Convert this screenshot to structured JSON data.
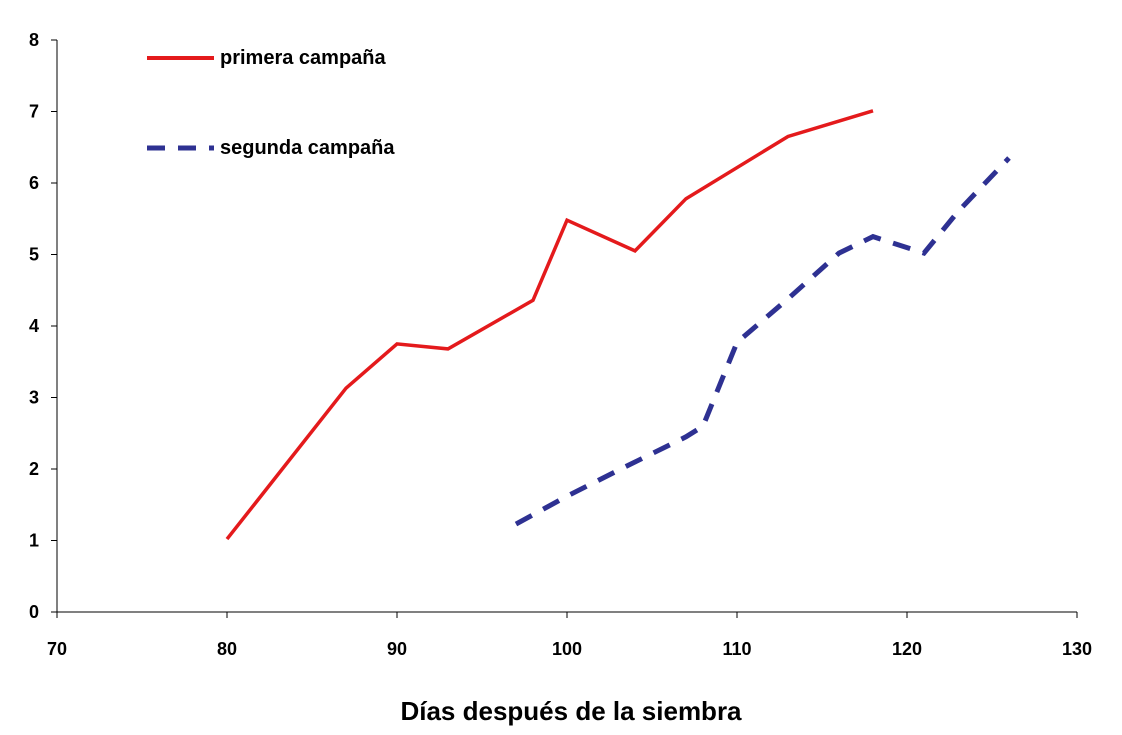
{
  "chart_data": {
    "type": "line",
    "title": "",
    "xlabel": "Días después de la siembra",
    "ylabel": "",
    "xlim": [
      70,
      130
    ],
    "ylim": [
      0,
      8
    ],
    "x_ticks": [
      70,
      80,
      90,
      100,
      110,
      120,
      130
    ],
    "y_ticks": [
      0,
      1,
      2,
      3,
      4,
      5,
      6,
      7,
      8
    ],
    "grid": false,
    "legend": "top-left",
    "series": [
      {
        "name": "primera campaña",
        "color": "#e41a1c",
        "style": "solid",
        "points": [
          [
            80,
            1.02
          ],
          [
            87,
            3.13
          ],
          [
            90,
            3.75
          ],
          [
            93,
            3.68
          ],
          [
            98,
            4.36
          ],
          [
            100,
            5.48
          ],
          [
            104,
            5.05
          ],
          [
            107,
            5.78
          ],
          [
            113,
            6.65
          ],
          [
            118,
            7.01
          ]
        ]
      },
      {
        "name": "segunda campaña",
        "color": "#2e3192",
        "style": "dashed",
        "points": [
          [
            97,
            1.23
          ],
          [
            100,
            1.62
          ],
          [
            103,
            1.98
          ],
          [
            107,
            2.45
          ],
          [
            108,
            2.6
          ],
          [
            110,
            3.77
          ],
          [
            113,
            4.38
          ],
          [
            116,
            5.02
          ],
          [
            118,
            5.25
          ],
          [
            121,
            5.02
          ],
          [
            123,
            5.6
          ],
          [
            126,
            6.35
          ]
        ]
      }
    ]
  }
}
